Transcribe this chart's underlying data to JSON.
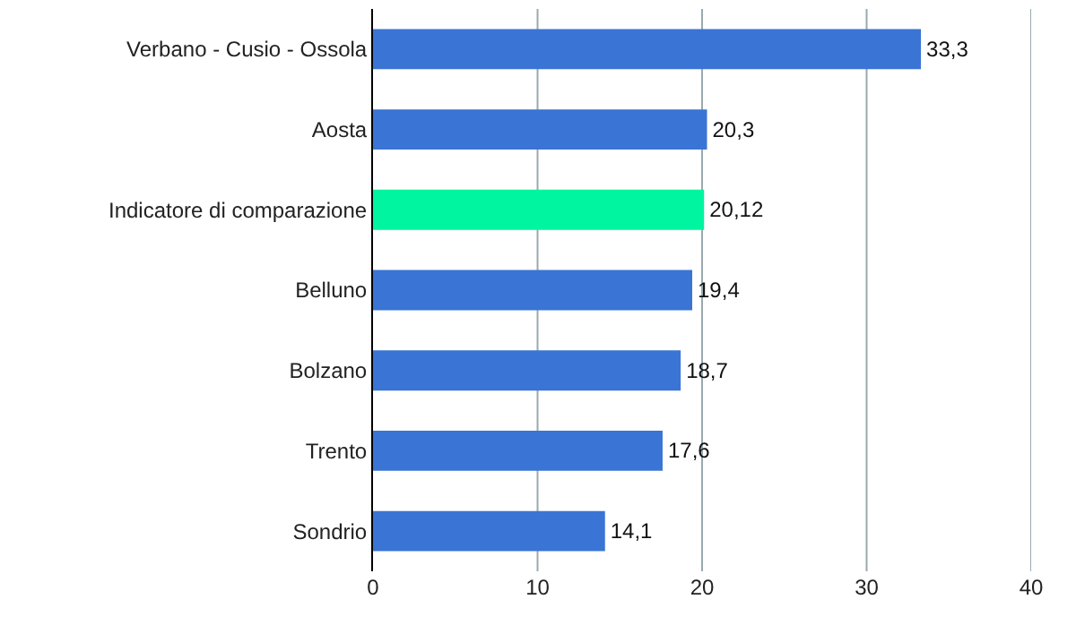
{
  "chart_data": {
    "type": "bar",
    "orientation": "horizontal",
    "categories": [
      "Verbano - Cusio - Ossola",
      "Aosta",
      "Indicatore di comparazione",
      "Belluno",
      "Bolzano",
      "Trento",
      "Sondrio"
    ],
    "values": [
      33.3,
      20.3,
      20.12,
      19.4,
      18.7,
      17.6,
      14.1
    ],
    "colors": [
      "#3a74d4",
      "#3a74d4",
      "#00f5a0",
      "#3a74d4",
      "#3a74d4",
      "#3a74d4",
      "#3a74d4"
    ],
    "value_labels": [
      "33,3",
      "20,3",
      "20,12",
      "19,4",
      "18,7",
      "17,6",
      "14,1"
    ],
    "xlim": [
      0,
      40
    ],
    "xticks": [
      0,
      10,
      20,
      30,
      40
    ],
    "grid": "x"
  }
}
